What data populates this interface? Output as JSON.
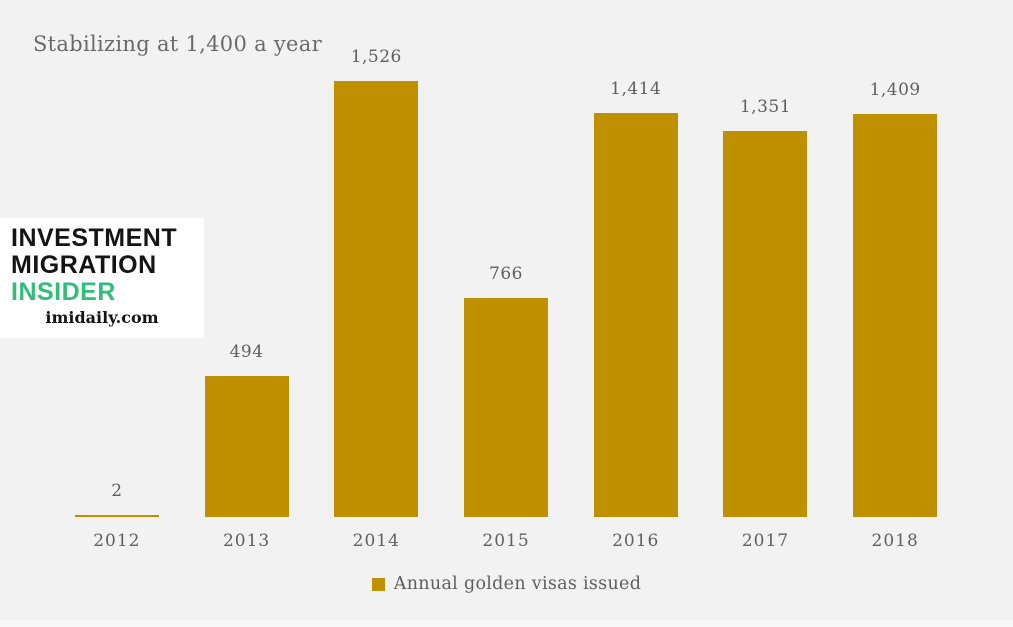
{
  "title": "Stabilizing at 1,400 a year",
  "logo": {
    "line1": "INVESTMENT",
    "line2": "MIGRATION",
    "line3": "INSIDER",
    "website": "imidaily.com"
  },
  "legend": {
    "label": "Annual golden visas issued"
  },
  "colors": {
    "background": "#f2f2f2",
    "bar": "#bf9000",
    "text": "#5f5f5f",
    "logo_green": "#31be78",
    "logo_black": "#141414",
    "logo_background": "#ffffff"
  },
  "chart_data": {
    "type": "bar",
    "title": "Stabilizing at 1,400 a year",
    "categories": [
      "2012",
      "2013",
      "2014",
      "2015",
      "2016",
      "2017",
      "2018"
    ],
    "values": [
      2,
      494,
      1526,
      766,
      1414,
      1351,
      1409
    ],
    "value_labels": [
      "2",
      "494",
      "1,526",
      "766",
      "1,414",
      "1,351",
      "1,409"
    ],
    "series_name": "Annual golden visas issued",
    "xlabel": "",
    "ylabel": "",
    "ylim": [
      0,
      1600
    ],
    "grid": false,
    "data_labels": "above-bars",
    "legend_position": "bottom",
    "bar_color": "#bf9000"
  }
}
